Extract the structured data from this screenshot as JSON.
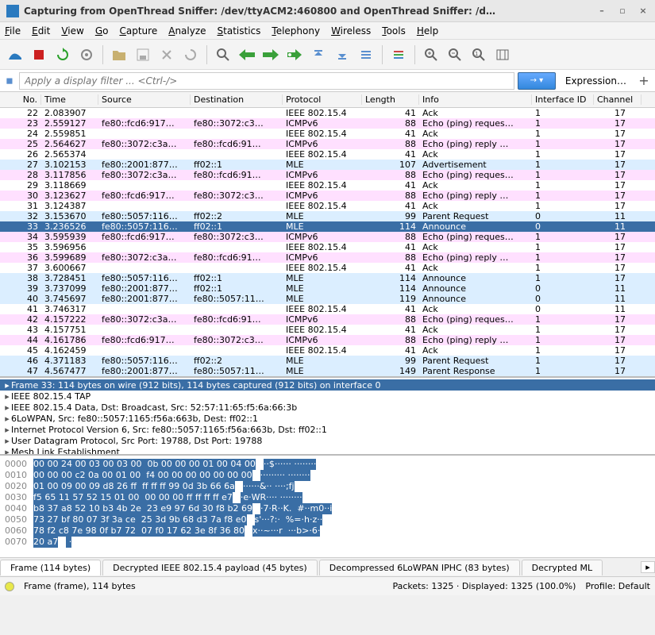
{
  "window": {
    "title": "Capturing from OpenThread Sniffer: /dev/ttyACM2:460800 and OpenThread Sniffer: /d…"
  },
  "menubar": [
    "File",
    "Edit",
    "View",
    "Go",
    "Capture",
    "Analyze",
    "Statistics",
    "Telephony",
    "Wireless",
    "Tools",
    "Help"
  ],
  "filter": {
    "placeholder": "Apply a display filter ... <Ctrl-/>",
    "expression": "Expression…"
  },
  "columns": [
    "No.",
    "Time",
    "Source",
    "Destination",
    "Protocol",
    "Length",
    "Info",
    "Interface ID",
    "Channel"
  ],
  "packets": [
    {
      "no": 22,
      "time": "2.083907",
      "src": "",
      "dst": "",
      "proto": "IEEE 802.15.4",
      "len": 41,
      "info": "Ack",
      "if": "1",
      "ch": "17",
      "cls": "r-plain"
    },
    {
      "no": 23,
      "time": "2.559127",
      "src": "fe80::fcd6:917…",
      "dst": "fe80::3072:c3…",
      "proto": "ICMPv6",
      "len": 88,
      "info": "Echo (ping) reques…",
      "if": "1",
      "ch": "17",
      "cls": "r-pink"
    },
    {
      "no": 24,
      "time": "2.559851",
      "src": "",
      "dst": "",
      "proto": "IEEE 802.15.4",
      "len": 41,
      "info": "Ack",
      "if": "1",
      "ch": "17",
      "cls": "r-plain"
    },
    {
      "no": 25,
      "time": "2.564627",
      "src": "fe80::3072:c3a…",
      "dst": "fe80::fcd6:91…",
      "proto": "ICMPv6",
      "len": 88,
      "info": "Echo (ping) reply …",
      "if": "1",
      "ch": "17",
      "cls": "r-pink"
    },
    {
      "no": 26,
      "time": "2.565374",
      "src": "",
      "dst": "",
      "proto": "IEEE 802.15.4",
      "len": 41,
      "info": "Ack",
      "if": "1",
      "ch": "17",
      "cls": "r-plain"
    },
    {
      "no": 27,
      "time": "3.102153",
      "src": "fe80::2001:877…",
      "dst": "ff02::1",
      "proto": "MLE",
      "len": 107,
      "info": "Advertisement",
      "if": "1",
      "ch": "17",
      "cls": "r-blue"
    },
    {
      "no": 28,
      "time": "3.117856",
      "src": "fe80::3072:c3a…",
      "dst": "fe80::fcd6:91…",
      "proto": "ICMPv6",
      "len": 88,
      "info": "Echo (ping) reques…",
      "if": "1",
      "ch": "17",
      "cls": "r-pink"
    },
    {
      "no": 29,
      "time": "3.118669",
      "src": "",
      "dst": "",
      "proto": "IEEE 802.15.4",
      "len": 41,
      "info": "Ack",
      "if": "1",
      "ch": "17",
      "cls": "r-plain"
    },
    {
      "no": 30,
      "time": "3.123627",
      "src": "fe80::fcd6:917…",
      "dst": "fe80::3072:c3…",
      "proto": "ICMPv6",
      "len": 88,
      "info": "Echo (ping) reply …",
      "if": "1",
      "ch": "17",
      "cls": "r-pink"
    },
    {
      "no": 31,
      "time": "3.124387",
      "src": "",
      "dst": "",
      "proto": "IEEE 802.15.4",
      "len": 41,
      "info": "Ack",
      "if": "1",
      "ch": "17",
      "cls": "r-plain"
    },
    {
      "no": 32,
      "time": "3.153670",
      "src": "fe80::5057:116…",
      "dst": "ff02::2",
      "proto": "MLE",
      "len": 99,
      "info": "Parent Request",
      "if": "0",
      "ch": "11",
      "cls": "r-blue"
    },
    {
      "no": 33,
      "time": "3.236526",
      "src": "fe80::5057:116…",
      "dst": "ff02::1",
      "proto": "MLE",
      "len": 114,
      "info": "Announce",
      "if": "0",
      "ch": "11",
      "cls": "r-sel"
    },
    {
      "no": 34,
      "time": "3.595939",
      "src": "fe80::fcd6:917…",
      "dst": "fe80::3072:c3…",
      "proto": "ICMPv6",
      "len": 88,
      "info": "Echo (ping) reques…",
      "if": "1",
      "ch": "17",
      "cls": "r-pink"
    },
    {
      "no": 35,
      "time": "3.596956",
      "src": "",
      "dst": "",
      "proto": "IEEE 802.15.4",
      "len": 41,
      "info": "Ack",
      "if": "1",
      "ch": "17",
      "cls": "r-plain"
    },
    {
      "no": 36,
      "time": "3.599689",
      "src": "fe80::3072:c3a…",
      "dst": "fe80::fcd6:91…",
      "proto": "ICMPv6",
      "len": 88,
      "info": "Echo (ping) reply …",
      "if": "1",
      "ch": "17",
      "cls": "r-pink"
    },
    {
      "no": 37,
      "time": "3.600667",
      "src": "",
      "dst": "",
      "proto": "IEEE 802.15.4",
      "len": 41,
      "info": "Ack",
      "if": "1",
      "ch": "17",
      "cls": "r-plain"
    },
    {
      "no": 38,
      "time": "3.728451",
      "src": "fe80::5057:116…",
      "dst": "ff02::1",
      "proto": "MLE",
      "len": 114,
      "info": "Announce",
      "if": "1",
      "ch": "17",
      "cls": "r-blue"
    },
    {
      "no": 39,
      "time": "3.737099",
      "src": "fe80::2001:877…",
      "dst": "ff02::1",
      "proto": "MLE",
      "len": 114,
      "info": "Announce",
      "if": "0",
      "ch": "11",
      "cls": "r-blue"
    },
    {
      "no": 40,
      "time": "3.745697",
      "src": "fe80::2001:877…",
      "dst": "fe80::5057:11…",
      "proto": "MLE",
      "len": 119,
      "info": "Announce",
      "if": "0",
      "ch": "11",
      "cls": "r-blue"
    },
    {
      "no": 41,
      "time": "3.746317",
      "src": "",
      "dst": "",
      "proto": "IEEE 802.15.4",
      "len": 41,
      "info": "Ack",
      "if": "0",
      "ch": "11",
      "cls": "r-plain"
    },
    {
      "no": 42,
      "time": "4.157222",
      "src": "fe80::3072:c3a…",
      "dst": "fe80::fcd6:91…",
      "proto": "ICMPv6",
      "len": 88,
      "info": "Echo (ping) reques…",
      "if": "1",
      "ch": "17",
      "cls": "r-pink"
    },
    {
      "no": 43,
      "time": "4.157751",
      "src": "",
      "dst": "",
      "proto": "IEEE 802.15.4",
      "len": 41,
      "info": "Ack",
      "if": "1",
      "ch": "17",
      "cls": "r-plain"
    },
    {
      "no": 44,
      "time": "4.161786",
      "src": "fe80::fcd6:917…",
      "dst": "fe80::3072:c3…",
      "proto": "ICMPv6",
      "len": 88,
      "info": "Echo (ping) reply …",
      "if": "1",
      "ch": "17",
      "cls": "r-pink"
    },
    {
      "no": 45,
      "time": "4.162459",
      "src": "",
      "dst": "",
      "proto": "IEEE 802.15.4",
      "len": 41,
      "info": "Ack",
      "if": "1",
      "ch": "17",
      "cls": "r-plain"
    },
    {
      "no": 46,
      "time": "4.371183",
      "src": "fe80::5057:116…",
      "dst": "ff02::2",
      "proto": "MLE",
      "len": 99,
      "info": "Parent Request",
      "if": "1",
      "ch": "17",
      "cls": "r-blue"
    },
    {
      "no": 47,
      "time": "4.567477",
      "src": "fe80::2001:877…",
      "dst": "fe80::5057:11…",
      "proto": "MLE",
      "len": 149,
      "info": "Parent Response",
      "if": "1",
      "ch": "17",
      "cls": "r-blue"
    }
  ],
  "details": [
    {
      "sel": true,
      "text": "Frame 33: 114 bytes on wire (912 bits), 114 bytes captured (912 bits) on interface 0"
    },
    {
      "sel": false,
      "text": "IEEE 802.15.4 TAP"
    },
    {
      "sel": false,
      "text": "IEEE 802.15.4 Data, Dst: Broadcast, Src: 52:57:11:65:f5:6a:66:3b"
    },
    {
      "sel": false,
      "text": "6LoWPAN, Src: fe80::5057:1165:f56a:663b, Dest: ff02::1"
    },
    {
      "sel": false,
      "text": "Internet Protocol Version 6, Src: fe80::5057:1165:f56a:663b, Dst: ff02::1"
    },
    {
      "sel": false,
      "text": "User Datagram Protocol, Src Port: 19788, Dst Port: 19788"
    },
    {
      "sel": false,
      "text": "Mesh Link Establishment"
    }
  ],
  "hex": [
    {
      "off": "0000",
      "b": "00 00 24 00 03 00 03 00  0b 00 00 00 01 00 04 00",
      "a": "··$······ ········"
    },
    {
      "off": "0010",
      "b": "00 00 00 c2 0a 00 01 00  f4 00 00 00 00 00 00 00",
      "a": "········· ········"
    },
    {
      "off": "0020",
      "b": "01 00 09 00 09 d8 26 ff  ff ff ff 99 0d 3b 66 6a",
      "a": "······&·· ····;fj"
    },
    {
      "off": "0030",
      "b": "f5 65 11 57 52 15 01 00  00 00 00 ff ff ff ff e7",
      "a": "·e·WR···· ········"
    },
    {
      "off": "0040",
      "b": "b8 37 a8 52 10 b3 4b 2e  23 e9 97 6d 30 f8 b2 69",
      "a": "·7·R··K.  #··m0··i"
    },
    {
      "off": "0050",
      "b": "73 27 bf 80 07 3f 3a ce  25 3d 9b 68 d3 7a f8 e0",
      "a": "s'···?:·  %=·h·z··"
    },
    {
      "off": "0060",
      "b": "78 f2 c8 7e 98 0f b7 72  07 f0 17 62 3e 8f 36 80",
      "a": "x··~···r  ···b>·6·"
    },
    {
      "off": "0070",
      "b": "20 a7",
      "a": " ·"
    }
  ],
  "tabs": [
    "Frame (114 bytes)",
    "Decrypted IEEE 802.15.4 payload (45 bytes)",
    "Decompressed 6LoWPAN IPHC (83 bytes)",
    "Decrypted ML"
  ],
  "status": {
    "left": "Frame (frame), 114 bytes",
    "packets": "Packets: 1325 · Displayed: 1325 (100.0%)",
    "profile": "Profile: Default"
  },
  "toolbar_icons": {
    "fin_fill": "#2a7abf",
    "stop": "#cc2020",
    "restart": "#2aa02a",
    "gear": "#888",
    "open": "#c8b070",
    "save": "#888",
    "close": "#888",
    "reload": "#888",
    "find": "#666",
    "back": "#3aa03a",
    "fwd": "#3aa03a",
    "jump": "#3aa03a",
    "first": "#5a8fcf",
    "last": "#5a8fcf",
    "autoscroll": "#5a8fcf",
    "colorize": "#5a8fcf",
    "zoomin": "#666",
    "zoomout": "#666",
    "zoom1": "#666",
    "resize": "#666"
  }
}
